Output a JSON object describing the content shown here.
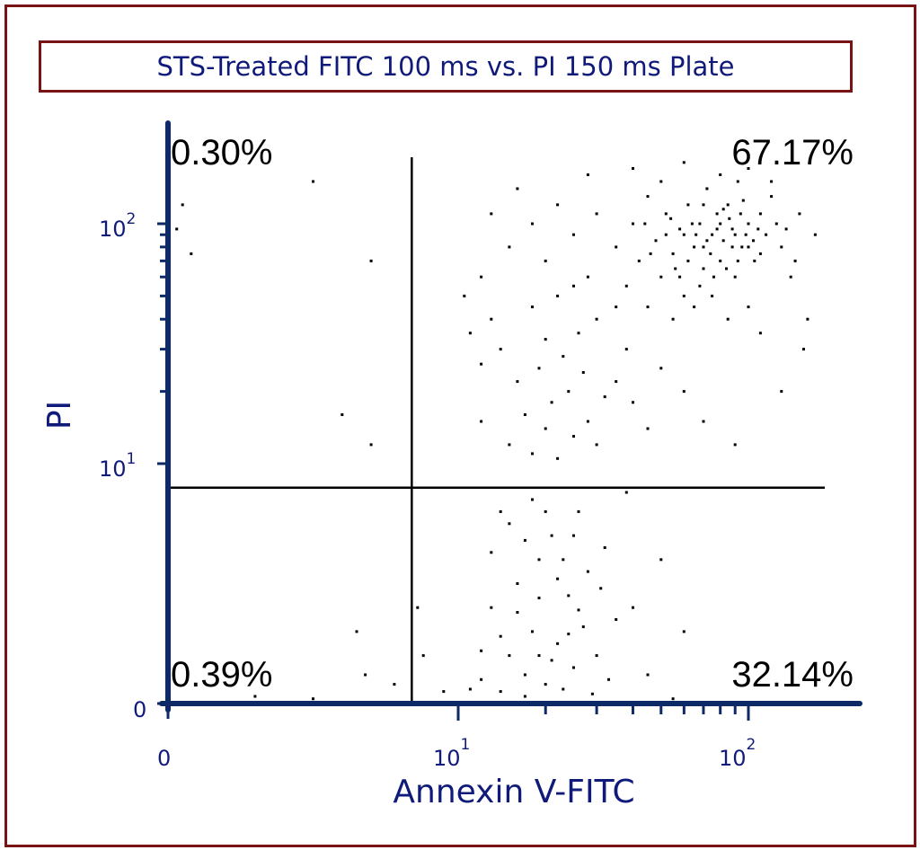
{
  "chart_data": {
    "type": "scatter",
    "title": "STS-Treated FITC 100 ms vs. PI 150 ms Plate",
    "xlabel": "Annexin V-FITC",
    "ylabel": "PI",
    "x_scale": "logicle (linear 0–10, log above)",
    "y_scale": "logicle (linear 0–10, log above)",
    "xlim": [
      0,
      183
    ],
    "ylim": [
      0,
      190
    ],
    "x_ticks": [
      {
        "base": "0",
        "exp": ""
      },
      {
        "base": "10",
        "exp": "1"
      },
      {
        "base": "10",
        "exp": "2"
      }
    ],
    "y_ticks": [
      {
        "base": "0",
        "exp": ""
      },
      {
        "base": "10",
        "exp": "1"
      },
      {
        "base": "10",
        "exp": "2"
      }
    ],
    "gates": {
      "x": 8.4,
      "y": 9.0
    },
    "quadrants": {
      "upper_left": "0.30%",
      "upper_right": "67.17%",
      "lower_left": "0.39%",
      "lower_right": "32.14%"
    },
    "grid": false,
    "colors": {
      "axis": "#0d2a66",
      "labels": "#101a7a",
      "frame": "#7a1414",
      "points": "#000000"
    },
    "points": [
      [
        12,
        1
      ],
      [
        14,
        0.5
      ],
      [
        15,
        2
      ],
      [
        17,
        1.2
      ],
      [
        18,
        3
      ],
      [
        20,
        0.8
      ],
      [
        22,
        2.5
      ],
      [
        25,
        1.5
      ],
      [
        13,
        4
      ],
      [
        16,
        5
      ],
      [
        19,
        6
      ],
      [
        21,
        7
      ],
      [
        24,
        4.5
      ],
      [
        27,
        3.2
      ],
      [
        30,
        2
      ],
      [
        33,
        1
      ],
      [
        15,
        7.5
      ],
      [
        18,
        8.5
      ],
      [
        23,
        6
      ],
      [
        26,
        8
      ],
      [
        14,
        2.8
      ],
      [
        17,
        0.3
      ],
      [
        21,
        1.8
      ],
      [
        28,
        5.5
      ],
      [
        35,
        3.5
      ],
      [
        11,
        0.6
      ],
      [
        12,
        2.2
      ],
      [
        16,
        3.8
      ],
      [
        19,
        4.4
      ],
      [
        22,
        5.2
      ],
      [
        20,
        8
      ],
      [
        25,
        7
      ],
      [
        29,
        0.4
      ],
      [
        32,
        6.5
      ],
      [
        40,
        4
      ],
      [
        45,
        1.2
      ],
      [
        13,
        6.3
      ],
      [
        24,
        2.9
      ],
      [
        31,
        4.8
      ],
      [
        17,
        6.8
      ],
      [
        9.5,
        0.5
      ],
      [
        8.8,
        2
      ],
      [
        50,
        6
      ],
      [
        60,
        3
      ],
      [
        38,
        8.8
      ],
      [
        55,
        0.2
      ],
      [
        14,
        8
      ],
      [
        19,
        2
      ],
      [
        23,
        0.6
      ],
      [
        26,
        3.9
      ],
      [
        3,
        0.3
      ],
      [
        5,
        0.2
      ],
      [
        6.8,
        1.2
      ],
      [
        6.5,
        3
      ],
      [
        8.6,
        4
      ],
      [
        7.8,
        0.8
      ],
      [
        15,
        12
      ],
      [
        18,
        11
      ],
      [
        20,
        14
      ],
      [
        22,
        10.5
      ],
      [
        25,
        13
      ],
      [
        17,
        16
      ],
      [
        21,
        18
      ],
      [
        24,
        20
      ],
      [
        28,
        15
      ],
      [
        30,
        12
      ],
      [
        16,
        22
      ],
      [
        19,
        25
      ],
      [
        23,
        28
      ],
      [
        27,
        24
      ],
      [
        32,
        19
      ],
      [
        14,
        30
      ],
      [
        20,
        33
      ],
      [
        26,
        35
      ],
      [
        35,
        22
      ],
      [
        40,
        18
      ],
      [
        45,
        14
      ],
      [
        12,
        26
      ],
      [
        13,
        40
      ],
      [
        18,
        45
      ],
      [
        22,
        50
      ],
      [
        30,
        40
      ],
      [
        38,
        30
      ],
      [
        50,
        25
      ],
      [
        60,
        20
      ],
      [
        70,
        15
      ],
      [
        90,
        12
      ],
      [
        12,
        60
      ],
      [
        15,
        80
      ],
      [
        18,
        100
      ],
      [
        20,
        70
      ],
      [
        25,
        90
      ],
      [
        28,
        60
      ],
      [
        30,
        110
      ],
      [
        35,
        80
      ],
      [
        38,
        55
      ],
      [
        40,
        100
      ],
      [
        42,
        70
      ],
      [
        45,
        130
      ],
      [
        48,
        85
      ],
      [
        50,
        60
      ],
      [
        52,
        110
      ],
      [
        55,
        75
      ],
      [
        58,
        95
      ],
      [
        60,
        50
      ],
      [
        62,
        120
      ],
      [
        65,
        80
      ],
      [
        68,
        100
      ],
      [
        70,
        65
      ],
      [
        72,
        140
      ],
      [
        75,
        90
      ],
      [
        78,
        110
      ],
      [
        80,
        70
      ],
      [
        82,
        85
      ],
      [
        85,
        120
      ],
      [
        88,
        95
      ],
      [
        90,
        60
      ],
      [
        92,
        150
      ],
      [
        95,
        80
      ],
      [
        100,
        100
      ],
      [
        105,
        70
      ],
      [
        110,
        110
      ],
      [
        115,
        90
      ],
      [
        120,
        130
      ],
      [
        130,
        80
      ],
      [
        140,
        60
      ],
      [
        150,
        110
      ],
      [
        160,
        40
      ],
      [
        170,
        90
      ],
      [
        45,
        45
      ],
      [
        55,
        40
      ],
      [
        65,
        45
      ],
      [
        75,
        50
      ],
      [
        85,
        40
      ],
      [
        100,
        45
      ],
      [
        35,
        45
      ],
      [
        25,
        55
      ],
      [
        22,
        120
      ],
      [
        16,
        140
      ],
      [
        28,
        160
      ],
      [
        40,
        170
      ],
      [
        60,
        180
      ],
      [
        80,
        160
      ],
      [
        100,
        170
      ],
      [
        120,
        150
      ],
      [
        50,
        150
      ],
      [
        70,
        120
      ],
      [
        58,
        60
      ],
      [
        62,
        70
      ],
      [
        66,
        90
      ],
      [
        74,
        75
      ],
      [
        78,
        95
      ],
      [
        84,
        65
      ],
      [
        88,
        80
      ],
      [
        94,
        110
      ],
      [
        98,
        90
      ],
      [
        52,
        90
      ],
      [
        56,
        65
      ],
      [
        68,
        55
      ],
      [
        72,
        85
      ],
      [
        76,
        60
      ],
      [
        86,
        105
      ],
      [
        92,
        70
      ],
      [
        104,
        85
      ],
      [
        108,
        95
      ],
      [
        64,
        100
      ],
      [
        82,
        115
      ],
      [
        46,
        75
      ],
      [
        54,
        105
      ],
      [
        44,
        100
      ],
      [
        60,
        90
      ],
      [
        70,
        80
      ],
      [
        80,
        100
      ],
      [
        90,
        90
      ],
      [
        100,
        80
      ],
      [
        96,
        125
      ],
      [
        110,
        75
      ],
      [
        125,
        100
      ],
      [
        135,
        95
      ],
      [
        145,
        70
      ],
      [
        155,
        30
      ],
      [
        130,
        20
      ],
      [
        110,
        35
      ],
      [
        12,
        15
      ],
      [
        11,
        35
      ],
      [
        10.5,
        50
      ],
      [
        13,
        110
      ],
      [
        7,
        12
      ],
      [
        6,
        16
      ],
      [
        7,
        70
      ],
      [
        0.5,
        120
      ],
      [
        0.8,
        75
      ],
      [
        0.3,
        95
      ],
      [
        5,
        150
      ]
    ]
  }
}
